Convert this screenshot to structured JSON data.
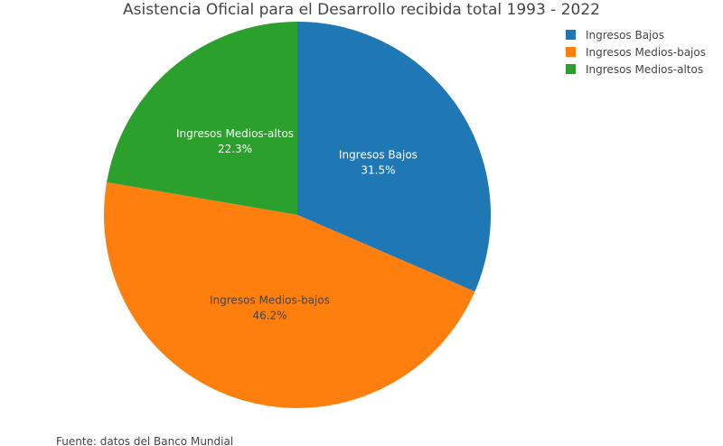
{
  "chart_data": {
    "type": "pie",
    "title": "Asistencia Oficial para el Desarrollo recibida total 1993 - 2022",
    "categories": [
      "Ingresos Bajos",
      "Ingresos Medios-bajos",
      "Ingresos Medios-altos"
    ],
    "values": [
      31.5,
      46.2,
      22.3
    ],
    "value_labels": [
      "31.5%",
      "46.2%",
      "22.3%"
    ],
    "colors": [
      "#1f77b4",
      "#ff7f0e",
      "#2ca02c"
    ],
    "label_colors": [
      "#ffffff",
      "#444444",
      "#ffffff"
    ],
    "direction": "clockwise",
    "start": "top",
    "legend": {
      "position": "top-right",
      "entries": [
        "Ingresos Bajos",
        "Ingresos Medios-bajos",
        "Ingresos Medios-altos"
      ]
    },
    "annotation": "Fuente: datos del Banco Mundial"
  }
}
